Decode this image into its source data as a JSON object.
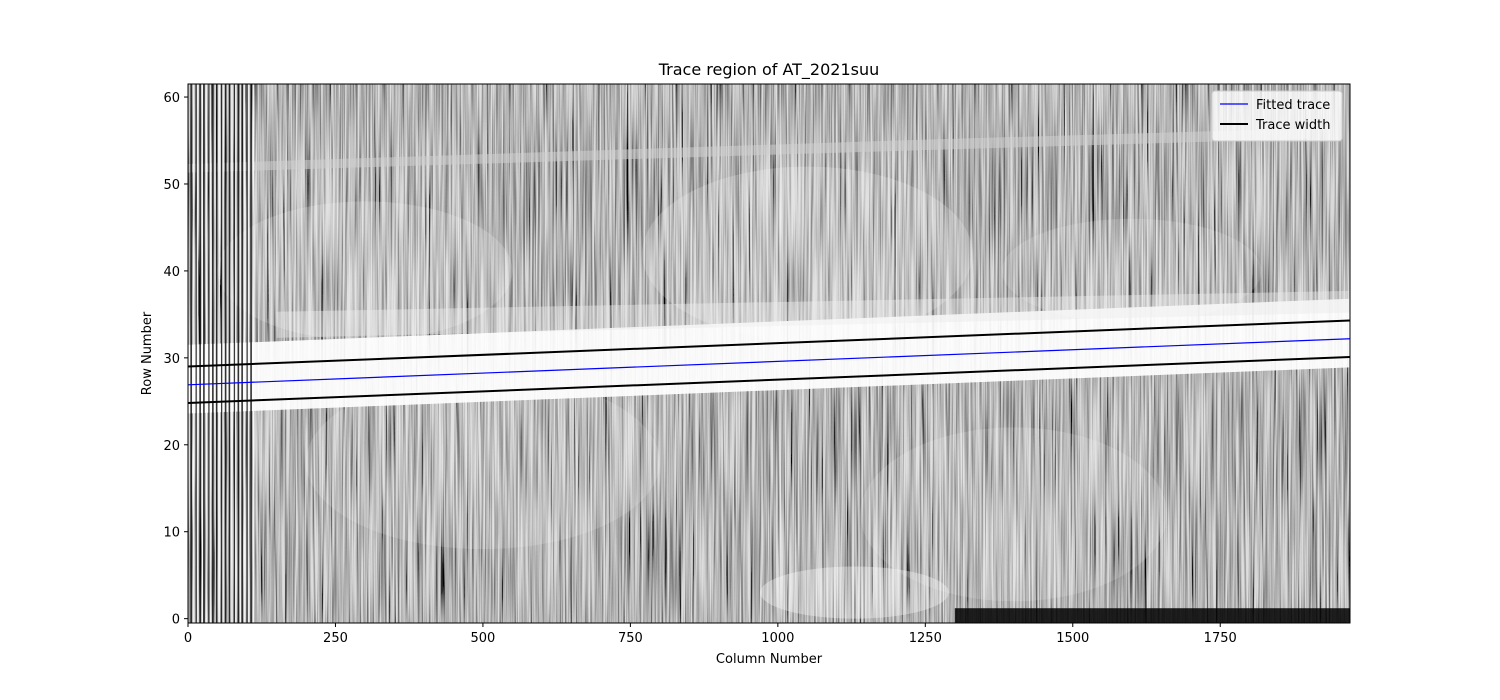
{
  "chart_data": {
    "type": "heatmap",
    "title": "Trace region of AT_2021suu",
    "xlabel": "Column Number",
    "ylabel": "Row Number",
    "xlim": [
      0,
      1970
    ],
    "ylim": [
      -0.5,
      61.5
    ],
    "xticks": [
      0,
      250,
      500,
      750,
      1000,
      1250,
      1500,
      1750
    ],
    "yticks": [
      0,
      10,
      20,
      30,
      40,
      50,
      60
    ],
    "grid": false,
    "legend_position": "upper-right",
    "colormap": "grayscale",
    "series": [
      {
        "name": "Fitted trace",
        "color": "#0000ff",
        "x": [
          0,
          1970
        ],
        "y": [
          26.9,
          32.2
        ]
      },
      {
        "name": "Trace width",
        "color": "#000000",
        "x": [
          0,
          1970
        ],
        "y": [
          29.0,
          34.3
        ]
      },
      {
        "name": "Trace width",
        "color": "#000000",
        "x": [
          0,
          1970
        ],
        "y": [
          24.8,
          30.1
        ]
      }
    ]
  }
}
